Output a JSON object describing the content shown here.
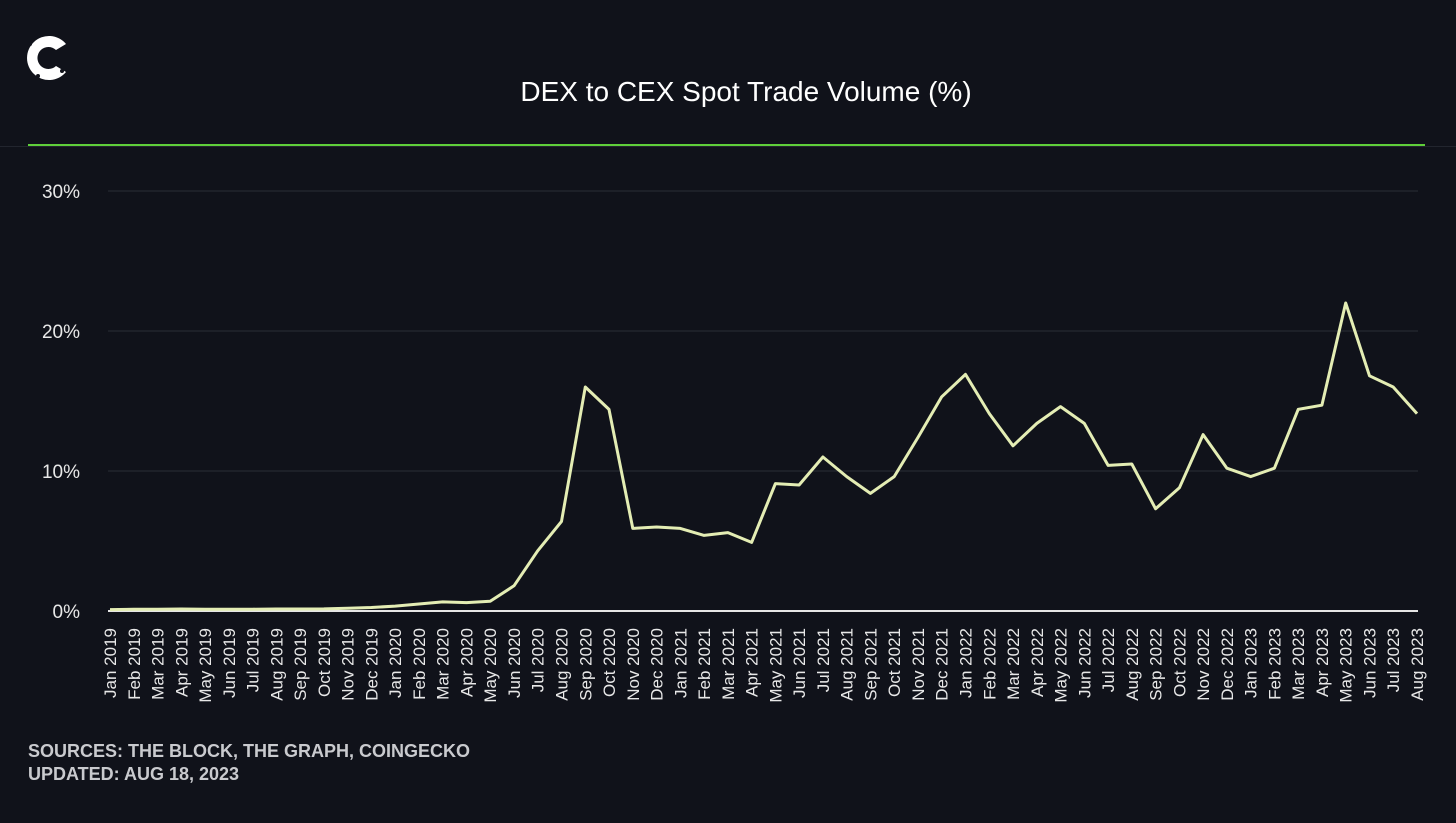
{
  "logo_text": "C",
  "colors": {
    "background": "#10121a",
    "accent": "#5fcf3a",
    "line": "#e4edb4",
    "grid": "#2a2d36",
    "baseline": "#e6e6e6"
  },
  "chart_data": {
    "type": "line",
    "title": "DEX to CEX Spot Trade Volume (%)",
    "xlabel": "",
    "ylabel": "",
    "ylim": [
      0,
      30
    ],
    "yticks": [
      0,
      10,
      20,
      30
    ],
    "ytick_labels": [
      "0%",
      "10%",
      "20%",
      "30%"
    ],
    "grid": true,
    "legend": "none",
    "categories": [
      "Jan 2019",
      "Feb 2019",
      "Mar 2019",
      "Apr 2019",
      "May 2019",
      "Jun 2019",
      "Jul 2019",
      "Aug 2019",
      "Sep 2019",
      "Oct 2019",
      "Nov 2019",
      "Dec 2019",
      "Jan 2020",
      "Feb 2020",
      "Mar 2020",
      "Apr 2020",
      "May 2020",
      "Jun 2020",
      "Jul 2020",
      "Aug 2020",
      "Sep 2020",
      "Oct 2020",
      "Nov 2020",
      "Dec 2020",
      "Jan 2021",
      "Feb 2021",
      "Mar 2021",
      "Apr 2021",
      "May 2021",
      "Jun 2021",
      "Jul 2021",
      "Aug 2021",
      "Sep 2021",
      "Oct 2021",
      "Nov 2021",
      "Dec 2021",
      "Jan 2022",
      "Feb 2022",
      "Mar 2022",
      "Apr 2022",
      "May 2022",
      "Jun 2022",
      "Jul 2022",
      "Aug 2022",
      "Sep 2022",
      "Oct 2022",
      "Nov 2022",
      "Dec 2022",
      "Jan 2023",
      "Feb 2023",
      "Mar 2023",
      "Apr 2023",
      "May 2023",
      "Jun 2023",
      "Jul 2023",
      "Aug 2023"
    ],
    "values": [
      0.1,
      0.12,
      0.13,
      0.14,
      0.13,
      0.13,
      0.13,
      0.14,
      0.14,
      0.15,
      0.2,
      0.25,
      0.35,
      0.5,
      0.65,
      0.6,
      0.7,
      1.8,
      4.3,
      6.4,
      16.0,
      14.4,
      5.9,
      6.0,
      5.9,
      5.4,
      5.6,
      4.9,
      9.1,
      9.0,
      11.0,
      9.6,
      8.4,
      9.6,
      12.4,
      15.3,
      16.9,
      14.1,
      11.8,
      13.4,
      14.6,
      13.4,
      10.4,
      10.5,
      7.3,
      8.8,
      12.6,
      10.2,
      9.6,
      10.2,
      14.4,
      14.7,
      22.0,
      16.8,
      16.0,
      14.1
    ]
  },
  "footer": {
    "sources": "SOURCES: THE BLOCK, THE GRAPH, COINGECKO",
    "updated": "UPDATED: AUG 18, 2023"
  }
}
